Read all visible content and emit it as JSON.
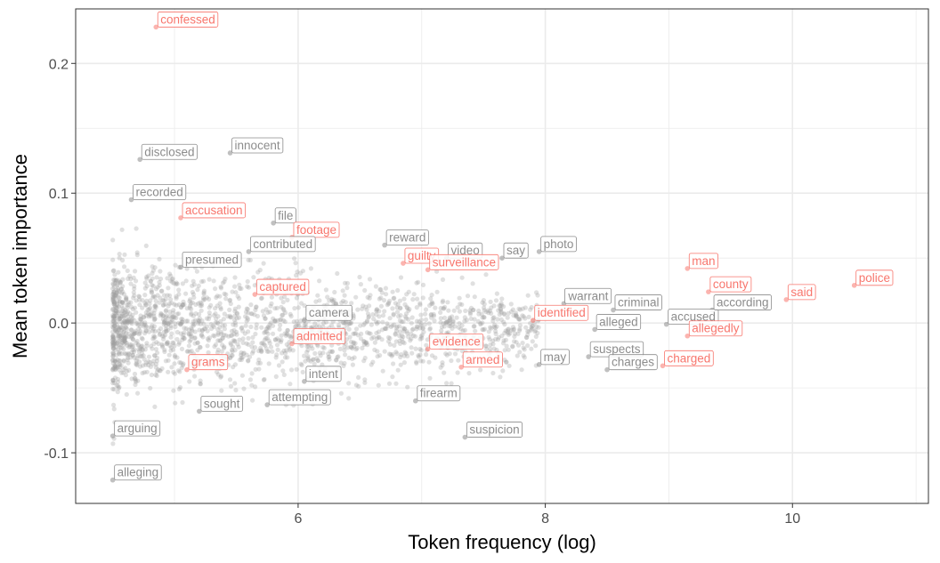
{
  "chart_data": {
    "type": "scatter",
    "xlabel": "Token frequency (log)",
    "ylabel": "Mean token importance",
    "xlim": [
      4.2,
      11.1
    ],
    "ylim": [
      -0.139,
      0.242
    ],
    "x_ticks": [
      {
        "value": 6,
        "label": "6"
      },
      {
        "value": 8,
        "label": "8"
      },
      {
        "value": 10,
        "label": "10"
      }
    ],
    "y_ticks": [
      {
        "value": -0.1,
        "label": "-0.1"
      },
      {
        "value": 0.0,
        "label": "0.0"
      },
      {
        "value": 0.1,
        "label": "0.1"
      },
      {
        "value": 0.2,
        "label": "0.2"
      }
    ],
    "grid": true,
    "colors": {
      "highlight": "#f8766d",
      "normal": "#8c8c8c",
      "points": "#a0a0a0",
      "grid": "#ebebeb",
      "border": "#333333"
    },
    "labeled_points": [
      {
        "word": "confessed",
        "x": 4.85,
        "y": 0.228,
        "group": "highlight"
      },
      {
        "word": "disclosed",
        "x": 4.72,
        "y": 0.126,
        "group": "normal"
      },
      {
        "word": "innocent",
        "x": 5.45,
        "y": 0.131,
        "group": "normal"
      },
      {
        "word": "recorded",
        "x": 4.65,
        "y": 0.095,
        "group": "normal"
      },
      {
        "word": "accusation",
        "x": 5.05,
        "y": 0.081,
        "group": "highlight"
      },
      {
        "word": "file",
        "x": 5.8,
        "y": 0.077,
        "group": "normal"
      },
      {
        "word": "footage",
        "x": 5.95,
        "y": 0.066,
        "group": "highlight"
      },
      {
        "word": "contributed",
        "x": 5.6,
        "y": 0.055,
        "group": "normal"
      },
      {
        "word": "presumed",
        "x": 5.05,
        "y": 0.043,
        "group": "normal"
      },
      {
        "word": "captured",
        "x": 5.65,
        "y": 0.022,
        "group": "highlight"
      },
      {
        "word": "camera",
        "x": 6.05,
        "y": 0.002,
        "group": "normal"
      },
      {
        "word": "admitted",
        "x": 5.95,
        "y": -0.016,
        "group": "highlight"
      },
      {
        "word": "grams",
        "x": 5.1,
        "y": -0.036,
        "group": "highlight"
      },
      {
        "word": "intent",
        "x": 6.05,
        "y": -0.045,
        "group": "normal"
      },
      {
        "word": "sought",
        "x": 5.2,
        "y": -0.068,
        "group": "normal"
      },
      {
        "word": "attempting",
        "x": 5.75,
        "y": -0.063,
        "group": "normal"
      },
      {
        "word": "arguing",
        "x": 4.5,
        "y": -0.087,
        "group": "normal"
      },
      {
        "word": "alleging",
        "x": 4.5,
        "y": -0.121,
        "group": "normal"
      },
      {
        "word": "reward",
        "x": 6.7,
        "y": 0.06,
        "group": "normal"
      },
      {
        "word": "guilty",
        "x": 6.85,
        "y": 0.046,
        "group": "highlight"
      },
      {
        "word": "video",
        "x": 7.2,
        "y": 0.05,
        "group": "normal"
      },
      {
        "word": "surveillance",
        "x": 7.05,
        "y": 0.041,
        "group": "highlight"
      },
      {
        "word": "say",
        "x": 7.65,
        "y": 0.05,
        "group": "normal"
      },
      {
        "word": "photo",
        "x": 7.95,
        "y": 0.055,
        "group": "normal"
      },
      {
        "word": "evidence",
        "x": 7.05,
        "y": -0.02,
        "group": "highlight"
      },
      {
        "word": "armed",
        "x": 7.32,
        "y": -0.034,
        "group": "highlight"
      },
      {
        "word": "firearm",
        "x": 6.95,
        "y": -0.06,
        "group": "normal"
      },
      {
        "word": "suspicion",
        "x": 7.35,
        "y": -0.088,
        "group": "normal"
      },
      {
        "word": "identified",
        "x": 7.9,
        "y": 0.002,
        "group": "highlight"
      },
      {
        "word": "may",
        "x": 7.95,
        "y": -0.032,
        "group": "normal"
      },
      {
        "word": "warrant",
        "x": 8.15,
        "y": 0.015,
        "group": "normal"
      },
      {
        "word": "criminal",
        "x": 8.55,
        "y": 0.01,
        "group": "normal"
      },
      {
        "word": "alleged",
        "x": 8.4,
        "y": -0.005,
        "group": "normal"
      },
      {
        "word": "suspects",
        "x": 8.35,
        "y": -0.026,
        "group": "normal"
      },
      {
        "word": "charges",
        "x": 8.5,
        "y": -0.036,
        "group": "normal"
      },
      {
        "word": "accused",
        "x": 8.98,
        "y": -0.001,
        "group": "normal"
      },
      {
        "word": "allegedly",
        "x": 9.15,
        "y": -0.01,
        "group": "highlight"
      },
      {
        "word": "charged",
        "x": 8.95,
        "y": -0.033,
        "group": "highlight"
      },
      {
        "word": "man",
        "x": 9.15,
        "y": 0.042,
        "group": "highlight"
      },
      {
        "word": "county",
        "x": 9.32,
        "y": 0.024,
        "group": "highlight"
      },
      {
        "word": "according",
        "x": 9.35,
        "y": 0.01,
        "group": "normal"
      },
      {
        "word": "said",
        "x": 9.95,
        "y": 0.018,
        "group": "highlight"
      },
      {
        "word": "police",
        "x": 10.5,
        "y": 0.029,
        "group": "highlight"
      }
    ],
    "point_cloud": {
      "n": 2000,
      "x_range": [
        4.5,
        7.95
      ],
      "y_center": -0.005,
      "y_spread": 0.022
    }
  }
}
